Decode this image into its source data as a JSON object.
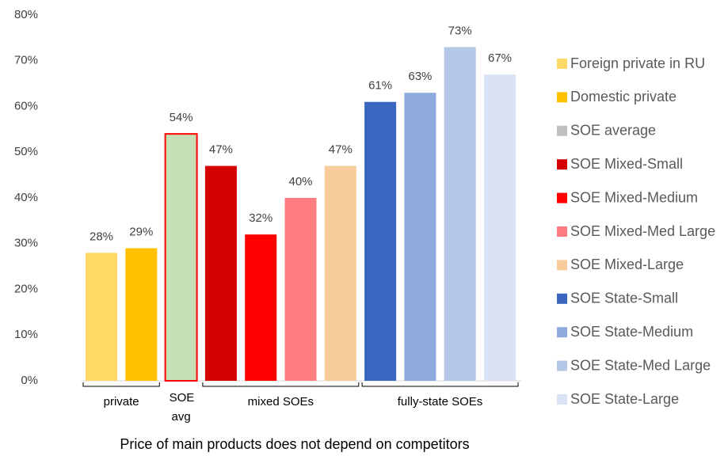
{
  "chart_data": {
    "type": "bar",
    "x_label": "Price of main products does not depend on competitors",
    "ylim": [
      0,
      80
    ],
    "yticks": [
      {
        "value": 0,
        "label": "0%"
      },
      {
        "value": 10,
        "label": "10%"
      },
      {
        "value": 20,
        "label": "20%"
      },
      {
        "value": 30,
        "label": "30%"
      },
      {
        "value": 40,
        "label": "40%"
      },
      {
        "value": 50,
        "label": "50%"
      },
      {
        "value": 60,
        "label": "60%"
      },
      {
        "value": 70,
        "label": "70%"
      },
      {
        "value": 80,
        "label": "80%"
      }
    ],
    "grid": false,
    "legend": "right",
    "series": [
      {
        "name": "Foreign private in RU",
        "color": "#ffd966",
        "values": [
          28
        ],
        "value_labels": [
          "28%"
        ]
      },
      {
        "name": "Domestic private",
        "color": "#ffc000",
        "values": [
          29
        ],
        "value_labels": [
          "29%"
        ]
      },
      {
        "name": "SOE average",
        "color": "#bfbfbf",
        "bar_color": "#c5e0b4",
        "edge_color": "#ff0000",
        "values": [
          54
        ],
        "value_labels": [
          "54%"
        ]
      },
      {
        "name": "SOE Mixed-Small",
        "color": "#d50000",
        "values": [
          47
        ],
        "value_labels": [
          "47%"
        ]
      },
      {
        "name": "SOE Mixed-Medium",
        "color": "#ff0000",
        "values": [
          32
        ],
        "value_labels": [
          "32%"
        ]
      },
      {
        "name": "SOE Mixed-Med Large",
        "color": "#ff7c80",
        "values": [
          40
        ],
        "value_labels": [
          "40%"
        ]
      },
      {
        "name": "SOE Mixed-Large",
        "color": "#f8cb9a",
        "values": [
          47
        ],
        "value_labels": [
          "47%"
        ]
      },
      {
        "name": "SOE State-Small",
        "color": "#3a66c0",
        "values": [
          61
        ],
        "value_labels": [
          "61%"
        ]
      },
      {
        "name": "SOE State-Medium",
        "color": "#8faadc",
        "values": [
          63
        ],
        "value_labels": [
          "63%"
        ]
      },
      {
        "name": "SOE State-Med Large",
        "color": "#b4c7e7",
        "values": [
          73
        ],
        "value_labels": [
          "73%"
        ]
      },
      {
        "name": "SOE State-Large",
        "color": "#dae3f3",
        "values": [
          67
        ],
        "value_labels": [
          "67%"
        ]
      }
    ],
    "groups": [
      {
        "label": "private",
        "size": 2,
        "bracket": true
      },
      {
        "label": "SOE avg",
        "size": 1,
        "bracket": false
      },
      {
        "label": "mixed SOEs",
        "size": 4,
        "bracket": true
      },
      {
        "label": "fully-state SOEs",
        "size": 4,
        "bracket": true
      }
    ]
  }
}
